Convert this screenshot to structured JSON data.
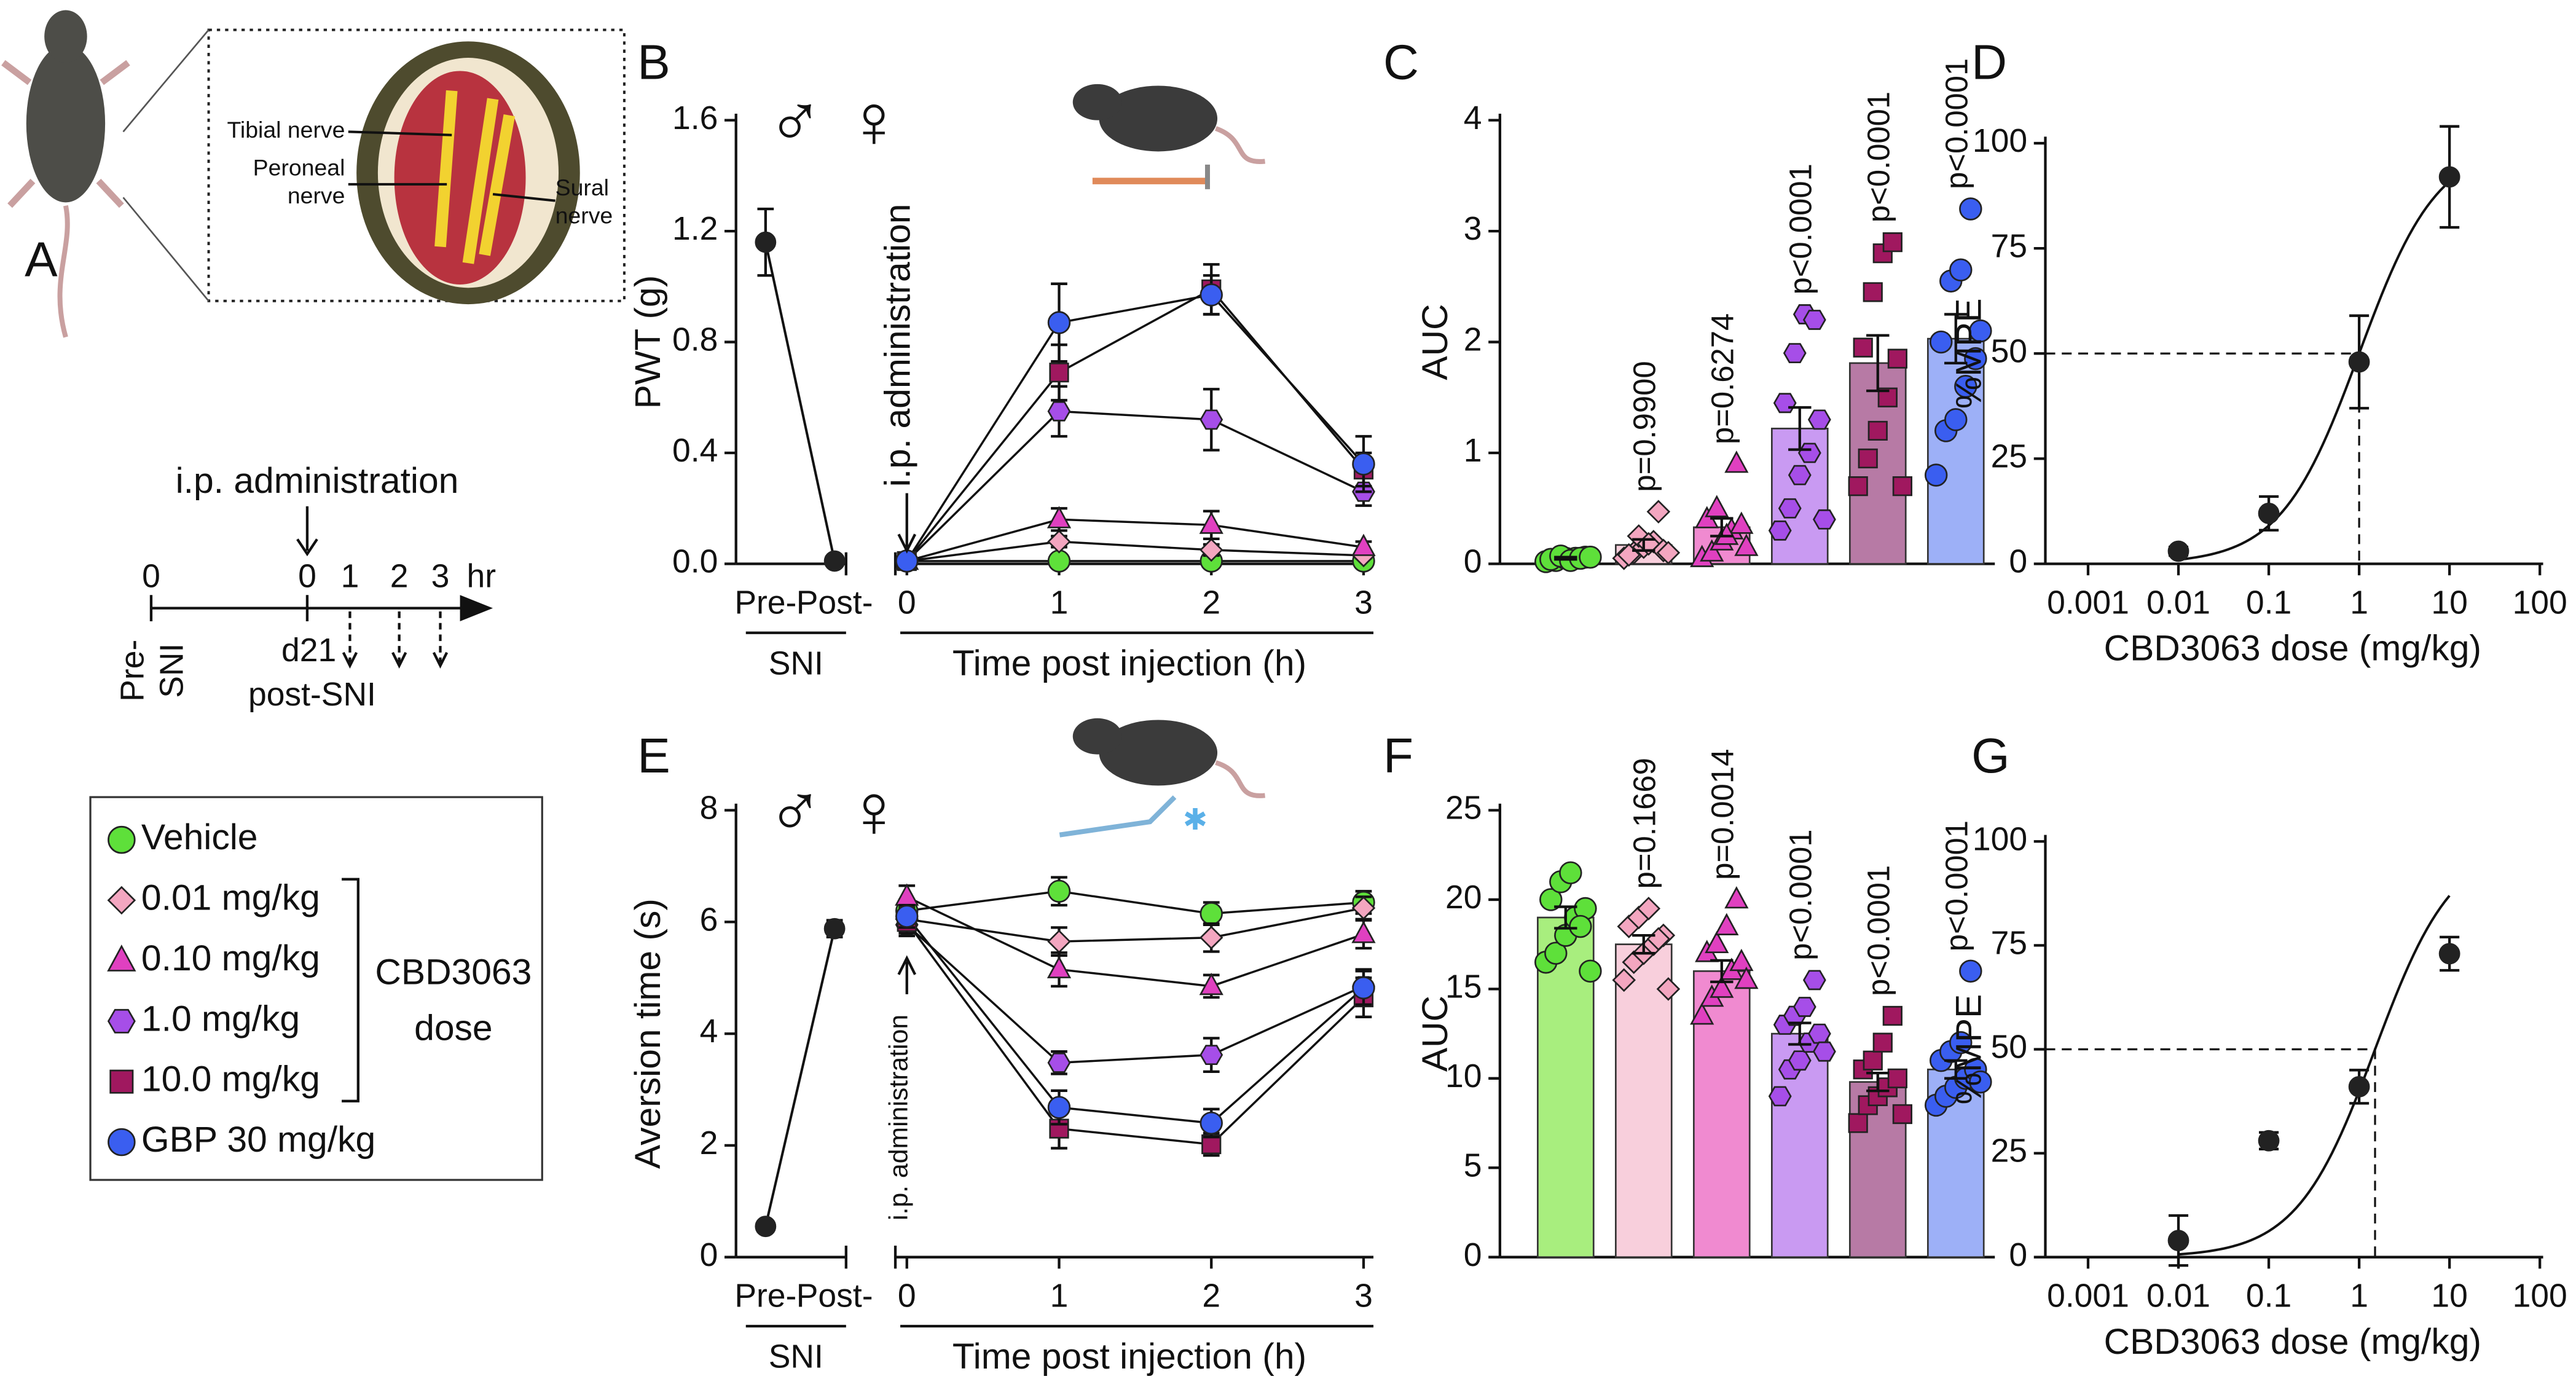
{
  "figure": {
    "panel_labels": [
      "A",
      "B",
      "C",
      "D",
      "E",
      "F",
      "G"
    ],
    "nerves": [
      [
        "Tibial nerve"
      ],
      [
        "Peroneal",
        "nerve"
      ],
      [
        "Sural",
        "nerve"
      ]
    ],
    "timeline": {
      "annotation": "i.p. administration",
      "ticks": [
        "0",
        "0",
        "1",
        "2",
        "3"
      ],
      "unit": "hr",
      "start": [
        "Pre-",
        "SNI"
      ],
      "event": [
        "d21",
        "post-SNI"
      ]
    },
    "legend_group": [
      "CBD3063",
      "dose"
    ]
  },
  "chart_data": [
    {
      "type": "line",
      "ylabel": "PWT (g)",
      "symbols": [
        "♂",
        "♀"
      ],
      "annotation": "i.p. administration",
      "ylim": [
        0,
        1.6
      ],
      "yticks": [
        {
          "value": 0,
          "label": "0.0"
        },
        0.4,
        0.8,
        1.2,
        1.6
      ],
      "baseline": {
        "categories": [
          "Pre-",
          "Post-"
        ],
        "values": [
          1.16,
          0.01
        ],
        "errors": [
          0.12,
          0
        ],
        "group_label": "SNI"
      },
      "xlabel": "Time post injection (h)",
      "x": [
        0,
        1,
        2,
        3
      ],
      "xlim": [
        0,
        3
      ],
      "xticks": [
        0,
        1,
        2,
        3
      ],
      "series": [
        {
          "name": "Vehicle",
          "color": "#5ee03a",
          "marker": "circle",
          "values": [
            0.01,
            0.01,
            0.01,
            0.01
          ],
          "errors": [
            0,
            0.01,
            0.01,
            0.01
          ]
        },
        {
          "name": "0.01 mg/kg",
          "color": "#f3a6c0",
          "marker": "diamond",
          "values": [
            0.01,
            0.08,
            0.05,
            0.03
          ],
          "errors": [
            0,
            0.02,
            0.02,
            0.01
          ]
        },
        {
          "name": "0.10 mg/kg",
          "color": "#e040c0",
          "marker": "triangle",
          "values": [
            0.01,
            0.16,
            0.14,
            0.06
          ],
          "errors": [
            0,
            0.04,
            0.05,
            0.02
          ]
        },
        {
          "name": "1.0 mg/kg",
          "color": "#a64ee8",
          "marker": "hexagon",
          "values": [
            0.01,
            0.55,
            0.52,
            0.26
          ],
          "errors": [
            0,
            0.09,
            0.11,
            0.05
          ]
        },
        {
          "name": "10.0 mg/kg",
          "color": "#a0185f",
          "marker": "square",
          "values": [
            0.01,
            0.69,
            0.99,
            0.34
          ],
          "errors": [
            0,
            0.1,
            0.09,
            0.06
          ]
        },
        {
          "name": "GBP 30 mg/kg",
          "color": "#3a5ef0",
          "marker": "circle",
          "values": [
            0.01,
            0.87,
            0.97,
            0.36
          ],
          "errors": [
            0,
            0.14,
            0.07,
            0.1
          ]
        }
      ]
    },
    {
      "type": "bar",
      "ylabel": "AUC",
      "ylim": [
        0,
        4
      ],
      "yticks": [
        0,
        1,
        2,
        3,
        4
      ],
      "categories": [
        null,
        null,
        null,
        null,
        null,
        null
      ],
      "values": [
        0.05,
        0.17,
        0.33,
        1.22,
        1.81,
        2.03
      ],
      "errors": [
        0.01,
        0.05,
        0.08,
        0.19,
        0.25,
        0.22
      ],
      "annotations": [
        null,
        "p=0.9900",
        "p=0.6274",
        "p<0.0001",
        "p<0.0001",
        "p<0.0001"
      ],
      "colors": [
        "#a8ee7e",
        "#f8cfdc",
        "#f08ad0",
        "#c99af2",
        "#b77aa5",
        "#9db0f7"
      ],
      "point_colors": [
        "#5ee03a",
        "#f3a6c0",
        "#e040c0",
        "#a64ee8",
        "#a0185f",
        "#3a5ef0"
      ],
      "markers": [
        "circle",
        "diamond",
        "triangle",
        "hexagon",
        "square",
        "circle"
      ],
      "points": [
        [
          0.02,
          0.03,
          0.05,
          0.05,
          0.06,
          0.04,
          0.07,
          0.03,
          0.05,
          0.06
        ],
        [
          0.05,
          0.1,
          0.15,
          0.2,
          0.12,
          0.08,
          0.25,
          0.18,
          0.47,
          0.1
        ],
        [
          0.05,
          0.1,
          0.2,
          0.3,
          0.35,
          0.4,
          0.5,
          0.25,
          0.9,
          0.15
        ],
        [
          0.3,
          0.5,
          0.8,
          1.0,
          1.3,
          1.45,
          1.9,
          2.25,
          2.2,
          0.4
        ],
        [
          0.7,
          0.95,
          1.2,
          1.5,
          1.85,
          1.95,
          2.45,
          2.8,
          2.9,
          0.7
        ],
        [
          0.8,
          1.2,
          1.3,
          1.6,
          1.85,
          2.0,
          2.55,
          2.65,
          3.2,
          2.1
        ]
      ]
    },
    {
      "type": "scatter",
      "ylabel": "%MPE",
      "xlabel": "CBD3063 dose (mg/kg)",
      "log_x": true,
      "xlim": [
        0.001,
        100
      ],
      "xticks": [
        0.001,
        0.01,
        0.1,
        1,
        10,
        100
      ],
      "ylim": [
        0,
        100
      ],
      "yticks": [
        0,
        25,
        50,
        75,
        100
      ],
      "x": [
        0.01,
        0.1,
        1,
        10
      ],
      "values": [
        3,
        12,
        48,
        92
      ],
      "errors": [
        1,
        4,
        11,
        12
      ],
      "color": "#222",
      "reference_lines": {
        "x": 1,
        "y": 50
      }
    },
    {
      "type": "line",
      "ylabel": "Aversion time (s)",
      "symbols": [
        "♂",
        "♀"
      ],
      "annotation": "i.p. administration",
      "ylim": [
        0,
        8
      ],
      "yticks": [
        0,
        2,
        4,
        6,
        8
      ],
      "baseline": {
        "categories": [
          "Pre-",
          "Post-"
        ],
        "values": [
          0.55,
          5.88
        ],
        "errors": [
          0.05,
          0.15
        ],
        "group_label": "SNI"
      },
      "xlabel": "Time post injection (h)",
      "x": [
        0,
        1,
        2,
        3
      ],
      "xlim": [
        0,
        3
      ],
      "xticks": [
        0,
        1,
        2,
        3
      ],
      "series": [
        {
          "name": "Vehicle",
          "color": "#5ee03a",
          "marker": "circle",
          "values": [
            6.2,
            6.55,
            6.15,
            6.35
          ],
          "errors": [
            0.2,
            0.25,
            0.2,
            0.2
          ]
        },
        {
          "name": "0.01 mg/kg",
          "color": "#f3a6c0",
          "marker": "diamond",
          "values": [
            6.05,
            5.65,
            5.72,
            6.25
          ],
          "errors": [
            0.2,
            0.25,
            0.25,
            0.2
          ]
        },
        {
          "name": "0.10 mg/kg",
          "color": "#e040c0",
          "marker": "triangle",
          "values": [
            6.45,
            5.15,
            4.85,
            5.78
          ],
          "errors": [
            0.2,
            0.3,
            0.2,
            0.25
          ]
        },
        {
          "name": "1.0 mg/kg",
          "color": "#a64ee8",
          "marker": "hexagon",
          "values": [
            5.95,
            3.48,
            3.62,
            4.85
          ],
          "errors": [
            0.2,
            0.2,
            0.3,
            0.3
          ]
        },
        {
          "name": "10.0 mg/kg",
          "color": "#a0185f",
          "marker": "square",
          "values": [
            6.0,
            2.3,
            2.02,
            4.65
          ],
          "errors": [
            0.2,
            0.35,
            0.2,
            0.35
          ]
        },
        {
          "name": "GBP 30 mg/kg",
          "color": "#3a5ef0",
          "marker": "circle",
          "values": [
            6.1,
            2.68,
            2.4,
            4.82
          ],
          "errors": [
            0.2,
            0.3,
            0.25,
            0.3
          ]
        }
      ]
    },
    {
      "type": "bar",
      "ylabel": "AUC",
      "ylim": [
        0,
        25
      ],
      "yticks": [
        0,
        5,
        10,
        15,
        20,
        25
      ],
      "categories": [
        null,
        null,
        null,
        null,
        null,
        null
      ],
      "values": [
        19,
        17.5,
        16,
        12.5,
        9.8,
        10.5
      ],
      "errors": [
        0.6,
        0.5,
        0.6,
        0.6,
        0.5,
        0.5
      ],
      "annotations": [
        null,
        "p=0.1669",
        "p=0.0014",
        "p<0.0001",
        "p<0.0001",
        "p<0.0001"
      ],
      "colors": [
        "#a8ee7e",
        "#f8cfdc",
        "#f08ad0",
        "#c99af2",
        "#b77aa5",
        "#9db0f7"
      ],
      "point_colors": [
        "#5ee03a",
        "#f3a6c0",
        "#e040c0",
        "#a64ee8",
        "#a0185f",
        "#3a5ef0"
      ],
      "markers": [
        "circle",
        "diamond",
        "triangle",
        "hexagon",
        "square",
        "circle"
      ],
      "points": [
        [
          16.5,
          17,
          18,
          19,
          19.5,
          20,
          21,
          21.5,
          18.5,
          16
        ],
        [
          15.5,
          16.5,
          17,
          17.5,
          18,
          18.5,
          19,
          19.5,
          17.8,
          15
        ],
        [
          13.5,
          14.5,
          15,
          16,
          16.5,
          17,
          17.5,
          18.5,
          20,
          15.5
        ],
        [
          9,
          10.5,
          11,
          12,
          12.5,
          13,
          13.5,
          14,
          15.5,
          11.5
        ],
        [
          7.5,
          8.5,
          9,
          9.5,
          10,
          10.5,
          11,
          12,
          13.5,
          8
        ],
        [
          8.5,
          9,
          9.5,
          10,
          10.5,
          11,
          11.5,
          12,
          16,
          9.8
        ]
      ]
    },
    {
      "type": "scatter",
      "ylabel": "%MPE",
      "xlabel": "CBD3063 dose (mg/kg)",
      "log_x": true,
      "xlim": [
        0.001,
        100
      ],
      "xticks": [
        0.001,
        0.01,
        0.1,
        1,
        10,
        100
      ],
      "ylim": [
        0,
        100
      ],
      "yticks": [
        0,
        25,
        50,
        75,
        100
      ],
      "x": [
        0.01,
        0.1,
        1,
        10
      ],
      "values": [
        4,
        28,
        41,
        73
      ],
      "errors": [
        6,
        2,
        4,
        4
      ],
      "color": "#222",
      "reference_lines": {
        "x": 1.5,
        "y": 50
      }
    }
  ]
}
